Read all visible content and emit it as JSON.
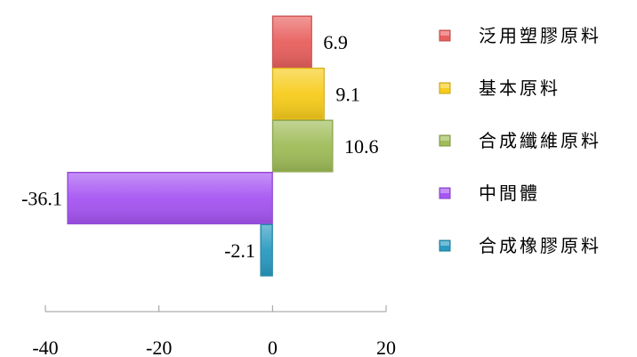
{
  "chart_data": {
    "type": "bar",
    "orientation": "horizontal",
    "categories": [
      "泛用塑膠原料",
      "基本原料",
      "合成纖維原料",
      "中間體",
      "合成橡膠原料"
    ],
    "values": [
      6.9,
      9.1,
      10.6,
      -36.1,
      -2.1
    ],
    "value_labels": [
      "6.9",
      "9.1",
      "10.6",
      "-36.1",
      "-2.1"
    ],
    "colors": [
      "#e8605e",
      "#f7cc1c",
      "#9fbc58",
      "#a655f2",
      "#2a9ac0"
    ],
    "xlim": [
      -40,
      20
    ],
    "xticks": [
      -40,
      -20,
      0,
      20
    ],
    "xtick_labels": [
      "-40",
      "-20",
      "0",
      "20"
    ],
    "grid": false,
    "legend": "right",
    "title": "",
    "xlabel": "",
    "ylabel": ""
  }
}
